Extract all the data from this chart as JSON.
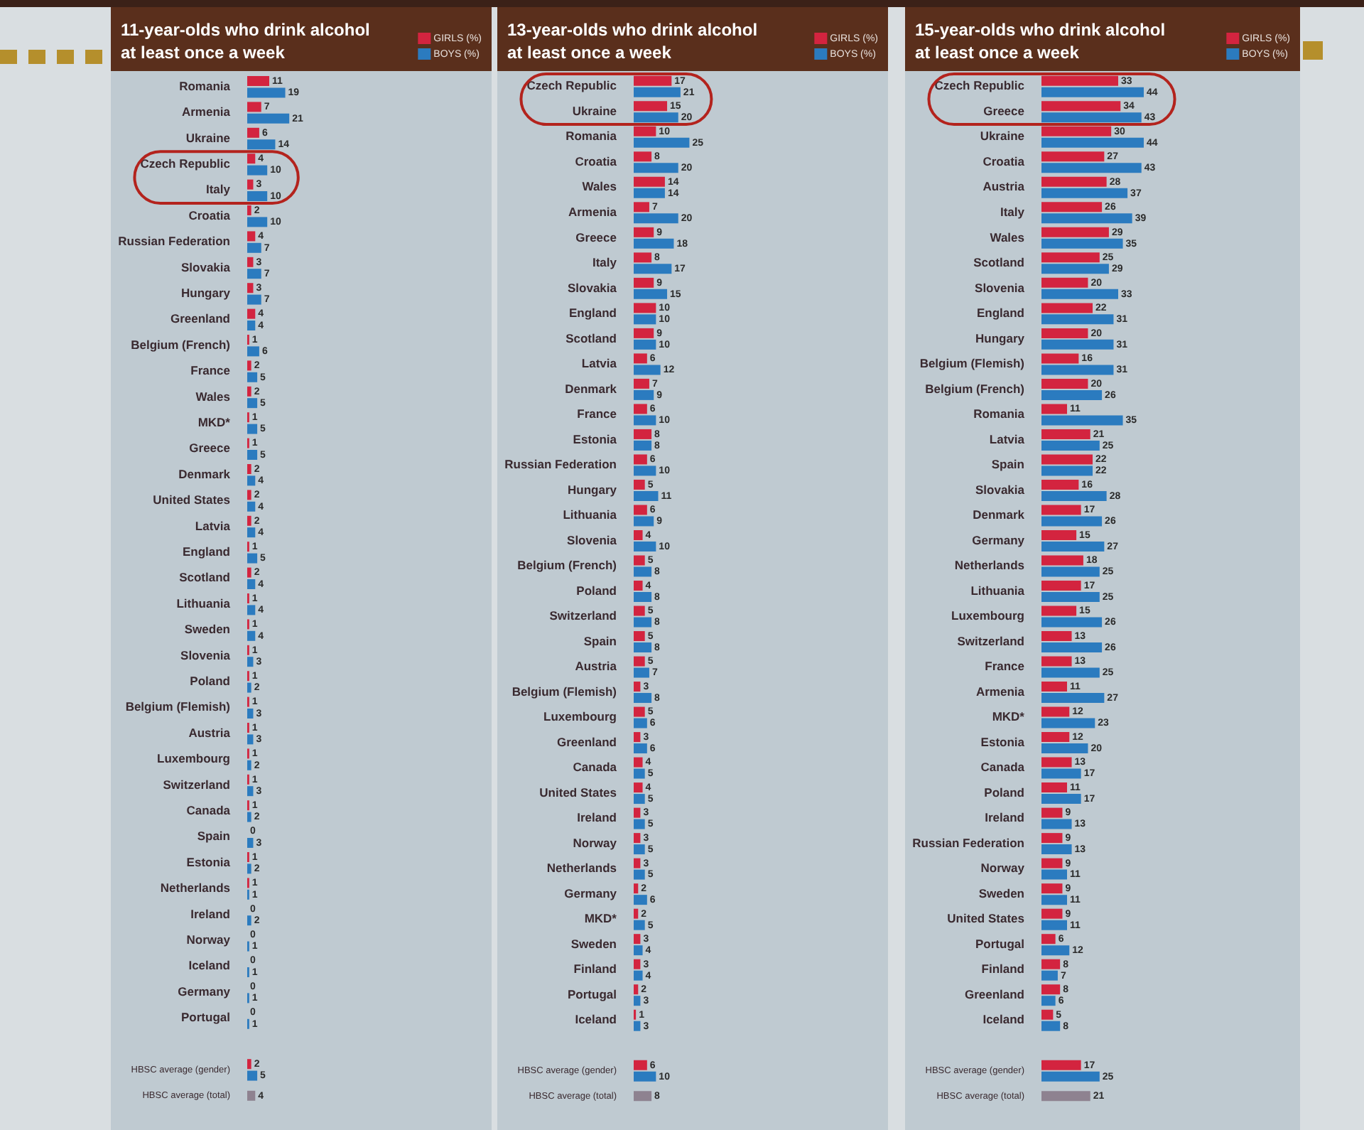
{
  "chart_data": [
    {
      "type": "bar",
      "orientation": "horizontal",
      "title": "11-year-olds who drink alcohol at least once a week",
      "categories": [
        "Romania",
        "Armenia",
        "Ukraine",
        "Czech Republic",
        "Italy",
        "Croatia",
        "Russian Federation",
        "Slovakia",
        "Hungary",
        "Greenland",
        "Belgium (French)",
        "France",
        "Wales",
        "MKD*",
        "Greece",
        "Denmark",
        "United States",
        "Latvia",
        "England",
        "Scotland",
        "Lithuania",
        "Sweden",
        "Slovenia",
        "Poland",
        "Belgium (Flemish)",
        "Austria",
        "Luxembourg",
        "Switzerland",
        "Canada",
        "Spain",
        "Estonia",
        "Netherlands",
        "Ireland",
        "Norway",
        "Iceland",
        "Germany",
        "Portugal",
        null,
        "HBSC average (gender)",
        "HBSC average (total)"
      ],
      "series": [
        {
          "name": "GIRLS (%)",
          "color": "#d3243f",
          "values": [
            11,
            7,
            6,
            4,
            3,
            2,
            4,
            3,
            3,
            4,
            1,
            2,
            2,
            1,
            1,
            2,
            2,
            2,
            1,
            2,
            1,
            1,
            1,
            1,
            1,
            1,
            1,
            1,
            1,
            0,
            1,
            1,
            0,
            0,
            0,
            0,
            0,
            null,
            2,
            null
          ]
        },
        {
          "name": "BOYS (%)",
          "color": "#2b7bbf",
          "values": [
            19,
            21,
            14,
            10,
            10,
            10,
            7,
            7,
            7,
            4,
            6,
            5,
            5,
            5,
            5,
            4,
            4,
            4,
            5,
            4,
            4,
            4,
            3,
            2,
            3,
            3,
            2,
            3,
            2,
            3,
            2,
            1,
            2,
            1,
            1,
            1,
            1,
            null,
            5,
            null
          ]
        },
        {
          "color": "#8e8290",
          "values": [
            null,
            null,
            null,
            null,
            null,
            null,
            null,
            null,
            null,
            null,
            null,
            null,
            null,
            null,
            null,
            null,
            null,
            null,
            null,
            null,
            null,
            null,
            null,
            null,
            null,
            null,
            null,
            null,
            null,
            null,
            null,
            null,
            null,
            null,
            null,
            null,
            null,
            null,
            null,
            4
          ]
        }
      ],
      "data_labels": true,
      "legend": "top right",
      "tick_labels": "y"
    },
    {
      "type": "bar",
      "orientation": "horizontal",
      "title": "13-year-olds who drink alcohol at least once a week",
      "categories": [
        "Czech Republic",
        "Ukraine",
        "Romania",
        "Croatia",
        "Wales",
        "Armenia",
        "Greece",
        "Italy",
        "Slovakia",
        "England",
        "Scotland",
        "Latvia",
        "Denmark",
        "France",
        "Estonia",
        "Russian Federation",
        "Hungary",
        "Lithuania",
        "Slovenia",
        "Belgium (French)",
        "Poland",
        "Switzerland",
        "Spain",
        "Austria",
        "Belgium (Flemish)",
        "Luxembourg",
        "Greenland",
        "Canada",
        "United States",
        "Ireland",
        "Norway",
        "Netherlands",
        "Germany",
        "MKD*",
        "Sweden",
        "Finland",
        "Portugal",
        "Iceland",
        null,
        "HBSC average (gender)",
        "HBSC average (total)"
      ],
      "series": [
        {
          "name": "GIRLS (%)",
          "color": "#d3243f",
          "values": [
            17,
            15,
            10,
            8,
            14,
            7,
            9,
            8,
            9,
            10,
            9,
            6,
            7,
            6,
            8,
            6,
            5,
            6,
            4,
            5,
            4,
            5,
            5,
            5,
            3,
            5,
            3,
            4,
            4,
            3,
            3,
            3,
            2,
            2,
            3,
            3,
            2,
            1,
            null,
            6,
            null
          ]
        },
        {
          "name": "BOYS (%)",
          "color": "#2b7bbf",
          "values": [
            21,
            20,
            25,
            20,
            14,
            20,
            18,
            17,
            15,
            10,
            10,
            12,
            9,
            10,
            8,
            10,
            11,
            9,
            10,
            8,
            8,
            8,
            8,
            7,
            8,
            6,
            6,
            5,
            5,
            5,
            5,
            5,
            6,
            5,
            4,
            4,
            3,
            3,
            null,
            10,
            null
          ]
        },
        {
          "color": "#8e8290",
          "values": [
            null,
            null,
            null,
            null,
            null,
            null,
            null,
            null,
            null,
            null,
            null,
            null,
            null,
            null,
            null,
            null,
            null,
            null,
            null,
            null,
            null,
            null,
            null,
            null,
            null,
            null,
            null,
            null,
            null,
            null,
            null,
            null,
            null,
            null,
            null,
            null,
            null,
            null,
            null,
            null,
            8
          ]
        }
      ],
      "data_labels": true,
      "legend": "top right",
      "tick_labels": "y"
    },
    {
      "type": "bar",
      "orientation": "horizontal",
      "title": "15-year-olds who drink alcohol at least once a week",
      "categories": [
        "Czech Republic",
        "Greece",
        "Ukraine",
        "Croatia",
        "Austria",
        "Italy",
        "Wales",
        "Scotland",
        "Slovenia",
        "England",
        "Hungary",
        "Belgium (Flemish)",
        "Belgium (French)",
        "Romania",
        "Latvia",
        "Spain",
        "Slovakia",
        "Denmark",
        "Germany",
        "Netherlands",
        "Lithuania",
        "Luxembourg",
        "Switzerland",
        "France",
        "Armenia",
        "MKD*",
        "Estonia",
        "Canada",
        "Poland",
        "Ireland",
        "Russian Federation",
        "Norway",
        "Sweden",
        "United States",
        "Portugal",
        "Finland",
        "Greenland",
        "Iceland",
        null,
        "HBSC average (gender)",
        "HBSC average (total)"
      ],
      "series": [
        {
          "name": "GIRLS (%)",
          "color": "#d3243f",
          "values": [
            33,
            34,
            30,
            27,
            28,
            26,
            29,
            25,
            20,
            22,
            20,
            16,
            20,
            11,
            21,
            22,
            16,
            17,
            15,
            18,
            17,
            15,
            13,
            13,
            11,
            12,
            12,
            13,
            11,
            9,
            9,
            9,
            9,
            9,
            6,
            8,
            8,
            5,
            null,
            17,
            null
          ]
        },
        {
          "name": "BOYS (%)",
          "color": "#2b7bbf",
          "values": [
            44,
            43,
            44,
            43,
            37,
            39,
            35,
            29,
            33,
            31,
            31,
            31,
            26,
            35,
            25,
            22,
            28,
            26,
            27,
            25,
            25,
            26,
            26,
            25,
            27,
            23,
            20,
            17,
            17,
            13,
            13,
            11,
            11,
            11,
            12,
            7,
            6,
            8,
            null,
            25,
            null
          ]
        },
        {
          "color": "#8e8290",
          "values": [
            null,
            null,
            null,
            null,
            null,
            null,
            null,
            null,
            null,
            null,
            null,
            null,
            null,
            null,
            null,
            null,
            null,
            null,
            null,
            null,
            null,
            null,
            null,
            null,
            null,
            null,
            null,
            null,
            null,
            null,
            null,
            null,
            null,
            null,
            null,
            null,
            null,
            null,
            null,
            null,
            21
          ]
        }
      ],
      "data_labels": true,
      "legend": "top right",
      "tick_labels": "y"
    }
  ]
}
